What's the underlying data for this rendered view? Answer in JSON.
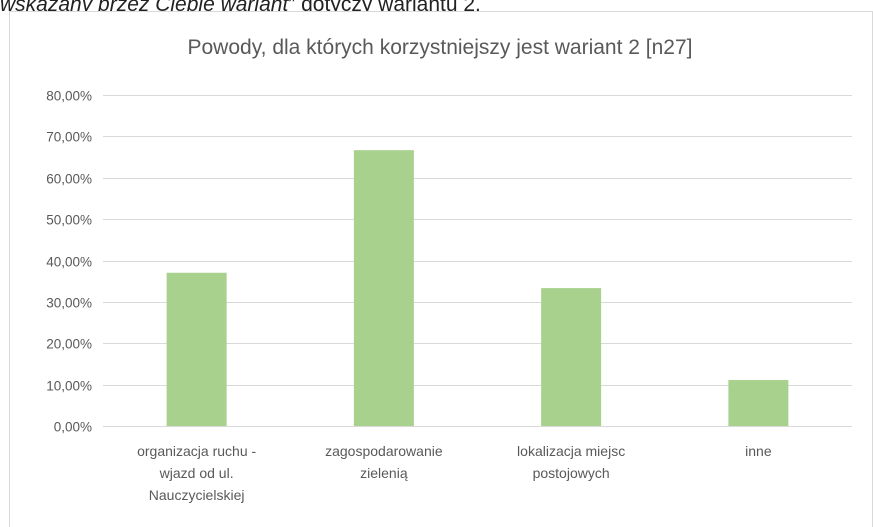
{
  "header_text": {
    "prefix": "wskazany przez Ciebie wariant",
    "suffix": "” dotyczy wariantu 2."
  },
  "chart_data": {
    "type": "bar",
    "title": "Powody, dla których korzystniejszy jest wariant 2 [n27]",
    "xlabel": "",
    "ylabel": "",
    "categories": [
      [
        "organizacja ruchu -",
        "wjazd od ul.",
        "Nauczycielskiej"
      ],
      [
        "zagospodarowanie",
        "zielenią"
      ],
      [
        "lokalizacja miejsc",
        "postojowych"
      ],
      [
        "inne"
      ]
    ],
    "values": [
      37.04,
      66.67,
      33.33,
      11.11
    ],
    "yticks": [
      "0,00%",
      "10,00%",
      "20,00%",
      "30,00%",
      "40,00%",
      "50,00%",
      "60,00%",
      "70,00%",
      "80,00%"
    ],
    "ylim": [
      0,
      80
    ],
    "grid": true,
    "bar_color": "#a9d18e",
    "grid_color": "#d9d9d9",
    "text_color": "#595959"
  }
}
